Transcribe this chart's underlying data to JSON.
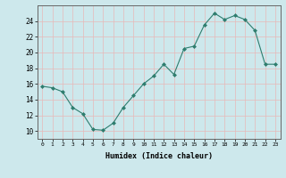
{
  "x": [
    0,
    1,
    2,
    3,
    4,
    5,
    6,
    7,
    8,
    9,
    10,
    11,
    12,
    13,
    14,
    15,
    16,
    17,
    18,
    19,
    20,
    21,
    22,
    23
  ],
  "y": [
    15.7,
    15.5,
    15.0,
    13.0,
    12.2,
    10.2,
    10.1,
    11.0,
    13.0,
    14.5,
    16.0,
    17.0,
    18.5,
    17.2,
    20.5,
    20.8,
    23.5,
    25.0,
    24.2,
    24.7,
    24.2,
    22.8,
    18.5,
    18.5
  ],
  "line_color": "#2e7d6e",
  "marker_color": "#2e7d6e",
  "bg_color": "#cde8ec",
  "grid_color": "#e8b8b8",
  "xlabel": "Humidex (Indice chaleur)",
  "ylim": [
    9,
    26
  ],
  "xlim": [
    -0.5,
    23.5
  ],
  "yticks": [
    10,
    12,
    14,
    16,
    18,
    20,
    22,
    24
  ],
  "xticks": [
    0,
    1,
    2,
    3,
    4,
    5,
    6,
    7,
    8,
    9,
    10,
    11,
    12,
    13,
    14,
    15,
    16,
    17,
    18,
    19,
    20,
    21,
    22,
    23
  ]
}
